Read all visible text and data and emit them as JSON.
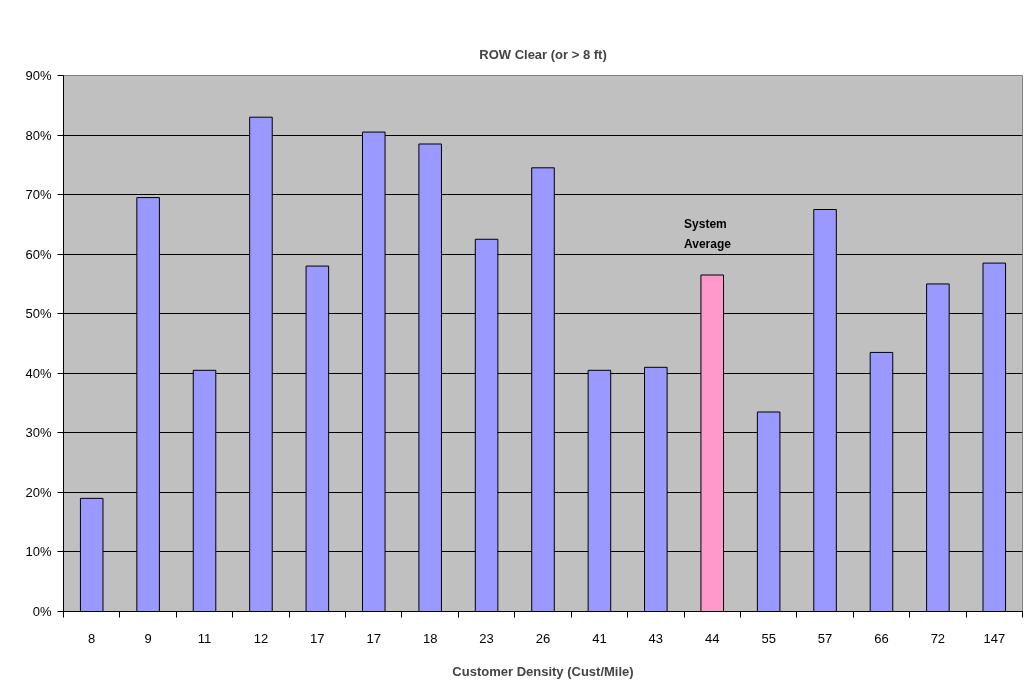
{
  "chart_data": {
    "type": "bar",
    "title": "ROW Clear (or > 8 ft)",
    "xlabel": "Customer Density (Cust/Mile)",
    "categories": [
      "8",
      "9",
      "11",
      "12",
      "17",
      "17",
      "18",
      "23",
      "26",
      "41",
      "43",
      "44",
      "55",
      "57",
      "66",
      "72",
      "147"
    ],
    "values": [
      19,
      69.5,
      40.5,
      83,
      58,
      80.5,
      78.5,
      62.5,
      74.5,
      40.5,
      41,
      56.5,
      33.5,
      67.5,
      43.5,
      55,
      58.5
    ],
    "colors": [
      "#9999ff",
      "#9999ff",
      "#9999ff",
      "#9999ff",
      "#9999ff",
      "#9999ff",
      "#9999ff",
      "#9999ff",
      "#9999ff",
      "#9999ff",
      "#9999ff",
      "#ff99cc",
      "#9999ff",
      "#9999ff",
      "#9999ff",
      "#9999ff",
      "#9999ff"
    ],
    "ylim": [
      0,
      90
    ],
    "yticks": [
      {
        "value": 0,
        "label": "0%"
      },
      {
        "value": 10,
        "label": "10%"
      },
      {
        "value": 20,
        "label": "20%"
      },
      {
        "value": 30,
        "label": "30%"
      },
      {
        "value": 40,
        "label": "40%"
      },
      {
        "value": 50,
        "label": "50%"
      },
      {
        "value": 60,
        "label": "60%"
      },
      {
        "value": 70,
        "label": "70%"
      },
      {
        "value": 80,
        "label": "80%"
      },
      {
        "value": 90,
        "label": "90%"
      }
    ],
    "grid": "y",
    "annotations": [
      {
        "text": "System Average",
        "x": "44",
        "y": 56.5
      }
    ]
  }
}
